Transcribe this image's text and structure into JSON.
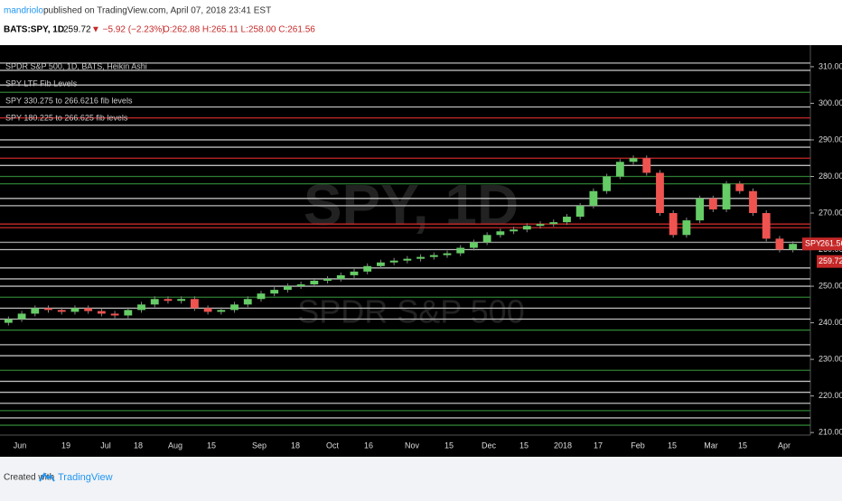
{
  "header": {
    "author": "mandriolo",
    "published": "published on TradingView.com, April 07, 2018 23:41 EST",
    "symbol": "BATS:SPY, 1D",
    "last": "259.72",
    "change": "▼ −5.92 (−2.23%)",
    "ohlc": "O:262.88 H:265.11 L:258.00 C:261.56"
  },
  "chart_data": {
    "type": "candlestick",
    "legend": [
      "SPDR S&P 500, 1D, BATS, Heikin Ashi",
      "SPY LTF Fib Levels",
      "SPY 330.275 to 266.6216 fib levels",
      "SPY 180.225 to 266.625 fib levels"
    ],
    "watermark": [
      "SPY, 1D",
      "SPDR S&P 500"
    ],
    "opens": [
      240,
      241,
      242.5,
      244,
      243.5,
      243,
      244,
      243.2,
      242.5,
      242,
      243.5,
      245,
      246.5,
      246,
      246.5,
      244,
      243,
      243.5,
      245,
      246.5,
      248,
      249,
      250,
      250.5,
      251.5,
      252,
      253,
      254,
      255.5,
      256.5,
      257,
      257.5,
      258,
      258.5,
      259,
      260.5,
      262,
      264,
      265,
      265.5,
      266.5,
      267,
      267.5,
      269,
      272,
      276,
      280,
      284,
      285,
      281,
      270,
      264,
      268,
      274,
      271,
      278,
      276,
      270,
      263,
      260
    ],
    "closes": [
      241,
      242.5,
      244,
      243.5,
      243,
      244,
      243.2,
      242.5,
      242,
      243.5,
      245,
      246.5,
      246,
      246.5,
      244,
      243,
      243.5,
      245,
      246.5,
      248,
      249,
      250,
      250.5,
      251.5,
      252,
      253,
      254,
      255.5,
      256.5,
      257,
      257.5,
      258,
      258.5,
      259,
      260.5,
      262,
      264,
      265,
      265.5,
      266.5,
      267,
      267.5,
      269,
      272,
      276,
      280,
      284,
      285,
      281,
      270,
      264,
      268,
      274,
      271,
      278,
      276,
      270,
      263,
      260,
      261.56
    ],
    "up_color": "#66cc66",
    "down_color": "#ef5350",
    "levels": [
      311,
      309,
      305,
      303,
      299,
      296,
      294,
      290,
      288,
      285,
      283,
      280,
      278,
      274,
      272,
      267,
      266,
      262,
      260,
      255,
      252,
      250,
      247,
      244,
      241,
      238,
      234,
      231,
      227,
      224,
      221,
      218,
      216,
      214,
      212
    ],
    "level_colors": [
      "#bbbbbb",
      "#bbbbbb",
      "#bbbbbb",
      "#2e7d32",
      "#bbbbbb",
      "#c62828",
      "#bbbbbb",
      "#bbbbbb",
      "#bbbbbb",
      "#c62828",
      "#bbbbbb",
      "#2e7d32",
      "#2e7d32",
      "#bbbbbb",
      "#bbbbbb",
      "#c62828",
      "#c62828",
      "#999999",
      "#bbbbbb",
      "#bbbbbb",
      "#bbbbbb",
      "#bbbbbb",
      "#2e7d32",
      "#bbbbbb",
      "#bbbbbb",
      "#2e7d32",
      "#bbbbbb",
      "#bbbbbb",
      "#2e7d32",
      "#bbbbbb",
      "#bbbbbb",
      "#bbbbbb",
      "#2e7d32",
      "#bbbbbb",
      "#2e7d32"
    ],
    "ylim": [
      209.3,
      315.9
    ],
    "yticks": [
      {
        "value": 210,
        "label": "210.00"
      },
      {
        "value": 220,
        "label": "220.00"
      },
      {
        "value": 230,
        "label": "230.00"
      },
      {
        "value": 240,
        "label": "240.00"
      },
      {
        "value": 250,
        "label": "250.00"
      },
      {
        "value": 260,
        "label": "260.00"
      },
      {
        "value": 270,
        "label": "270.00"
      },
      {
        "value": 280,
        "label": "280.00"
      },
      {
        "value": 290,
        "label": "290.00"
      },
      {
        "value": 300,
        "label": "300.00"
      },
      {
        "value": 310,
        "label": "310.00"
      }
    ],
    "xtick_labels": [
      "Jun",
      "19",
      "Jul",
      "18",
      "Aug",
      "15",
      "Sep",
      "18",
      "Oct",
      "16",
      "Nov",
      "15",
      "Dec",
      "15",
      "2018",
      "17",
      "Feb",
      "15",
      "Mar",
      "15",
      "Apr"
    ],
    "symbol_tag": "SPY",
    "last_price": 261.56,
    "prev_close": 259.72
  },
  "footer": {
    "created": "Created with",
    "brand": "TradingView"
  }
}
